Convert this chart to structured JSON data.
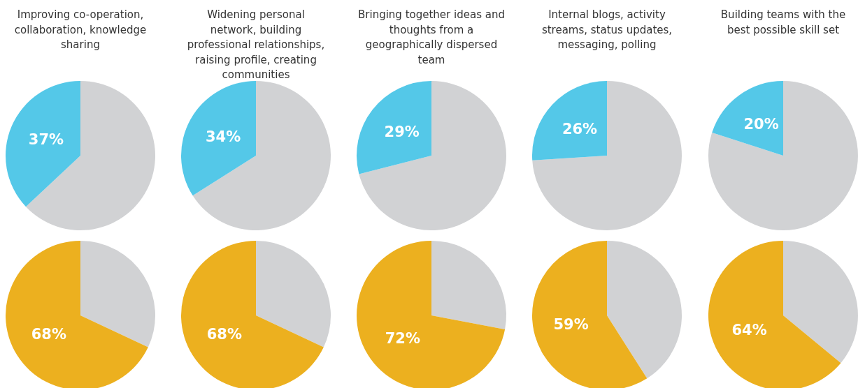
{
  "chart_data": [
    {
      "type": "pie",
      "title": "Improving co-operation, collaboration, knowledge sharing",
      "categories": [
        null,
        null
      ],
      "values": [
        63,
        37
      ],
      "colors": [
        "#d1d2d4",
        "#54c8e8"
      ],
      "value_labels": [
        null,
        "37%"
      ]
    },
    {
      "type": "pie",
      "title": "Widening personal network, building professional relationships, raising profile, creating communities",
      "categories": [
        null,
        null
      ],
      "values": [
        66,
        34
      ],
      "colors": [
        "#d1d2d4",
        "#54c8e8"
      ],
      "value_labels": [
        null,
        "34%"
      ]
    },
    {
      "type": "pie",
      "title": "Bringing together ideas and thoughts from a geographically dispersed team",
      "categories": [
        null,
        null
      ],
      "values": [
        71,
        29
      ],
      "colors": [
        "#d1d2d4",
        "#54c8e8"
      ],
      "value_labels": [
        null,
        "29%"
      ]
    },
    {
      "type": "pie",
      "title": "Internal blogs, activity streams, status updates, messaging, polling",
      "categories": [
        null,
        null
      ],
      "values": [
        74,
        26
      ],
      "colors": [
        "#d1d2d4",
        "#54c8e8"
      ],
      "value_labels": [
        null,
        "26%"
      ]
    },
    {
      "type": "pie",
      "title": "Building teams with the best possible skill set",
      "categories": [
        null,
        null
      ],
      "values": [
        80,
        20
      ],
      "colors": [
        "#d1d2d4",
        "#54c8e8"
      ],
      "value_labels": [
        null,
        "20%"
      ]
    },
    {
      "type": "pie",
      "categories": [
        null,
        null
      ],
      "values": [
        32,
        68
      ],
      "colors": [
        "#d1d2d4",
        "#ecb01f"
      ],
      "value_labels": [
        null,
        "68%"
      ]
    },
    {
      "type": "pie",
      "categories": [
        null,
        null
      ],
      "values": [
        32,
        68
      ],
      "colors": [
        "#d1d2d4",
        "#ecb01f"
      ],
      "value_labels": [
        null,
        "68%"
      ]
    },
    {
      "type": "pie",
      "categories": [
        null,
        null
      ],
      "values": [
        28,
        72
      ],
      "colors": [
        "#d1d2d4",
        "#ecb01f"
      ],
      "value_labels": [
        null,
        "72%"
      ]
    },
    {
      "type": "pie",
      "categories": [
        null,
        null
      ],
      "values": [
        41,
        59
      ],
      "colors": [
        "#d1d2d4",
        "#ecb01f"
      ],
      "value_labels": [
        null,
        "59%"
      ]
    },
    {
      "type": "pie",
      "categories": [
        null,
        null
      ],
      "values": [
        36,
        64
      ],
      "colors": [
        "#d1d2d4",
        "#ecb01f"
      ],
      "value_labels": [
        null,
        "64%"
      ]
    }
  ]
}
